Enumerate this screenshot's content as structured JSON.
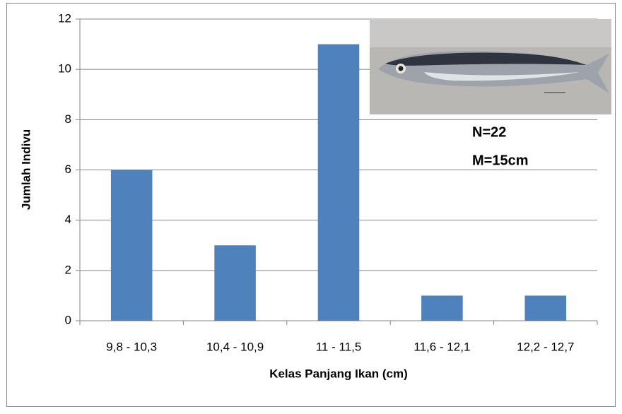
{
  "chart_data": {
    "type": "bar",
    "x_label": "Kelas Panjang Ikan (cm)",
    "y_label": "Jumlah Indivu",
    "categories": [
      "9,8 - 10,3",
      "10,4 - 10,9",
      "11 - 11,5",
      "11,6 - 12,1",
      "12,2 - 12,7"
    ],
    "values": [
      6,
      3,
      11,
      1,
      1
    ],
    "color": "#4f81bd",
    "ylim": [
      0,
      12
    ],
    "yticks": [
      0,
      2,
      4,
      6,
      8,
      10,
      12
    ],
    "grid": true,
    "annotations": [
      "N=22",
      "M=15cm"
    ]
  }
}
